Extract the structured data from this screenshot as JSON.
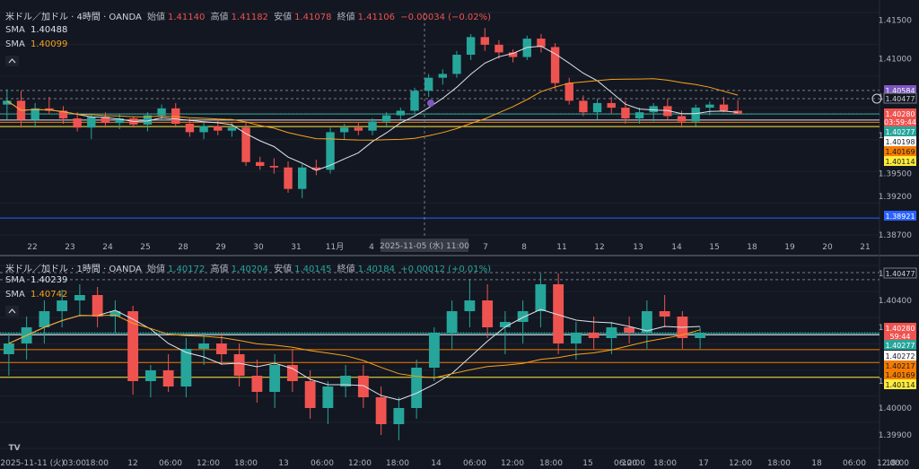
{
  "colors": {
    "bg": "#131722",
    "up": "#26a69a",
    "down": "#ef5350",
    "sma_fast": "#e0e3eb",
    "sma_slow": "#f7a21b",
    "grid": "#1e222d",
    "text": "#b2b5be"
  },
  "top": {
    "title": "米ドル／加ドル · 4時間 · OANDA",
    "ohlc": {
      "open_label": "始値",
      "open": "1.41140",
      "high_label": "高値",
      "high": "1.41182",
      "low_label": "安値",
      "low": "1.41078",
      "close_label": "終値",
      "close": "1.41106",
      "change": "−0.00034 (−0.02%)"
    },
    "sma1": {
      "label": "SMA",
      "value": "1.40488"
    },
    "sma2": {
      "label": "SMA",
      "value": "1.40099"
    },
    "price_ticks": [
      "1.41500",
      "1.41000",
      "1.40500",
      "1.40000",
      "1.39500",
      "1.39200",
      "1.38700"
    ],
    "tags": [
      {
        "text": "1.40584",
        "bg": "#7e57c2",
        "fg": "#ffffff"
      },
      {
        "text": "1.40477",
        "bg": "#131722",
        "fg": "#d1d4dc"
      },
      {
        "text": "1.40280",
        "bg": "#ef5350",
        "fg": "#ffffff"
      },
      {
        "text": "03:59:44",
        "bg": "#ef5350",
        "fg": "#ffffff"
      },
      {
        "text": "1.40277",
        "bg": "#26a69a",
        "fg": "#ffffff"
      },
      {
        "text": "1.40198",
        "bg": "#ffffff",
        "fg": "#131722"
      },
      {
        "text": "1.40169",
        "bg": "#f57c00",
        "fg": "#131722"
      },
      {
        "text": "1.40114",
        "bg": "#ffeb3b",
        "fg": "#131722"
      },
      {
        "text": "1.38921",
        "bg": "#2962ff",
        "fg": "#ffffff"
      }
    ],
    "time_ticks": [
      "22",
      "23",
      "24",
      "25",
      "28",
      "29",
      "30",
      "31",
      "11月",
      "4",
      "5",
      "6",
      "7",
      "8",
      "11",
      "12",
      "13",
      "14",
      "15",
      "18",
      "19",
      "20",
      "21"
    ],
    "crosshair_label": "2025-11-05 (水)  11:00"
  },
  "bottom": {
    "title": "米ドル／加ドル · 1時間 · OANDA",
    "ohlc": {
      "open_label": "始値",
      "open": "1.40172",
      "high_label": "高値",
      "high": "1.40204",
      "low_label": "安値",
      "low": "1.40145",
      "close_label": "終値",
      "close": "1.40184",
      "change": "+0.00012 (+0.01%)"
    },
    "sma1": {
      "label": "SMA",
      "value": "1.40239"
    },
    "sma2": {
      "label": "SMA",
      "value": "1.40742"
    },
    "price_ticks": [
      "1.40500",
      "1.40400",
      "1.40300",
      "1.40100",
      "1.40000",
      "1.39900"
    ],
    "tags": [
      {
        "text": "1.40477",
        "bg": "#131722",
        "fg": "#d1d4dc"
      },
      {
        "text": "1.40280",
        "bg": "#ef5350",
        "fg": "#ffffff"
      },
      {
        "text": "59:44",
        "bg": "#ef5350",
        "fg": "#ffffff"
      },
      {
        "text": "1.40277",
        "bg": "#26a69a",
        "fg": "#ffffff"
      },
      {
        "text": "1.40272",
        "bg": "#ffffff",
        "fg": "#131722"
      },
      {
        "text": "1.40217",
        "bg": "#f57c00",
        "fg": "#131722"
      },
      {
        "text": "1.40169",
        "bg": "#f57c00",
        "fg": "#131722"
      },
      {
        "text": "1.40114",
        "bg": "#ffeb3b",
        "fg": "#131722"
      }
    ],
    "time_ticks": [
      "2025-11-11 (火)",
      "03:00",
      "18:00",
      "12",
      "06:00",
      "12:00",
      "18:00",
      "13",
      "06:00",
      "12:00",
      "18:00",
      "14",
      "06:00",
      "12:00",
      "18:00",
      "15",
      "06:00",
      "12:00",
      "18:00",
      "17",
      "12:00",
      "18:00",
      "18",
      "06:00",
      "12:00",
      "18:00"
    ],
    "logo": "TV"
  },
  "chart_data": [
    {
      "type": "candlestick",
      "title": "米ドル／加ドル · 4時間 · OANDA",
      "ylim": [
        1.387,
        1.416
      ],
      "x_ticks": [
        "22",
        "23",
        "24",
        "25",
        "28",
        "29",
        "30",
        "31",
        "11月",
        "4",
        "5",
        "6",
        "7",
        "8",
        "11",
        "12",
        "13",
        "14",
        "15",
        "18",
        "19",
        "20",
        "21"
      ],
      "ohlc": [
        [
          1.404,
          1.406,
          1.402,
          1.4045
        ],
        [
          1.4045,
          1.4058,
          1.401,
          1.402
        ],
        [
          1.402,
          1.4042,
          1.401,
          1.4035
        ],
        [
          1.4035,
          1.405,
          1.4028,
          1.4032
        ],
        [
          1.4032,
          1.4038,
          1.4015,
          1.4022
        ],
        [
          1.4022,
          1.403,
          1.4005,
          1.401
        ],
        [
          1.401,
          1.4028,
          1.3995,
          1.4024
        ],
        [
          1.4024,
          1.403,
          1.401,
          1.4016
        ],
        [
          1.4016,
          1.4028,
          1.4008,
          1.4022
        ],
        [
          1.4022,
          1.4025,
          1.401,
          1.4014
        ],
        [
          1.4014,
          1.403,
          1.4005,
          1.4026
        ],
        [
          1.4026,
          1.404,
          1.402,
          1.4035
        ],
        [
          1.4035,
          1.4042,
          1.401,
          1.4015
        ],
        [
          1.4015,
          1.4022,
          1.3998,
          1.4004
        ],
        [
          1.4004,
          1.4018,
          1.3995,
          1.4012
        ],
        [
          1.4012,
          1.402,
          1.4,
          1.4006
        ],
        [
          1.4006,
          1.4016,
          1.3998,
          1.401
        ],
        [
          1.401,
          1.4018,
          1.396,
          1.3965
        ],
        [
          1.3965,
          1.3972,
          1.3955,
          1.396
        ],
        [
          1.396,
          1.397,
          1.395,
          1.3958
        ],
        [
          1.3958,
          1.3966,
          1.3925,
          1.393
        ],
        [
          1.393,
          1.3962,
          1.3918,
          1.3958
        ],
        [
          1.3958,
          1.3968,
          1.3948,
          1.3955
        ],
        [
          1.3955,
          1.401,
          1.395,
          1.4004
        ],
        [
          1.4004,
          1.4015,
          1.3995,
          1.401
        ],
        [
          1.401,
          1.4016,
          1.4,
          1.4006
        ],
        [
          1.4006,
          1.4022,
          1.4,
          1.4018
        ],
        [
          1.4018,
          1.403,
          1.401,
          1.4026
        ],
        [
          1.4026,
          1.4036,
          1.402,
          1.4032
        ],
        [
          1.4032,
          1.4062,
          1.4028,
          1.4058
        ],
        [
          1.4058,
          1.408,
          1.405,
          1.4075
        ],
        [
          1.4075,
          1.4086,
          1.4066,
          1.408
        ],
        [
          1.408,
          1.411,
          1.4075,
          1.4105
        ],
        [
          1.4105,
          1.4132,
          1.4098,
          1.4128
        ],
        [
          1.4128,
          1.414,
          1.411,
          1.4118
        ],
        [
          1.4118,
          1.4124,
          1.41,
          1.4108
        ],
        [
          1.4108,
          1.4112,
          1.4095,
          1.4102
        ],
        [
          1.4102,
          1.413,
          1.4098,
          1.4126
        ],
        [
          1.4126,
          1.4132,
          1.4108,
          1.4115
        ],
        [
          1.4115,
          1.412,
          1.406,
          1.4068
        ],
        [
          1.4068,
          1.4075,
          1.404,
          1.4045
        ],
        [
          1.4045,
          1.4052,
          1.4025,
          1.403
        ],
        [
          1.403,
          1.4048,
          1.402,
          1.4042
        ],
        [
          1.4042,
          1.405,
          1.4028,
          1.4036
        ],
        [
          1.4036,
          1.4045,
          1.4015,
          1.4022
        ],
        [
          1.4022,
          1.4036,
          1.4015,
          1.403
        ],
        [
          1.403,
          1.4042,
          1.4018,
          1.4038
        ],
        [
          1.4038,
          1.4048,
          1.402,
          1.4025
        ],
        [
          1.4025,
          1.4032,
          1.401,
          1.4018
        ],
        [
          1.4018,
          1.404,
          1.4012,
          1.4036
        ],
        [
          1.4036,
          1.4044,
          1.4026,
          1.404
        ],
        [
          1.404,
          1.405,
          1.403,
          1.4032
        ],
        [
          1.4032,
          1.4046,
          1.4028,
          1.4028
        ]
      ],
      "sma_fast_label": "SMA",
      "sma_fast_last": 1.40488,
      "sma_slow_label": "SMA",
      "sma_slow_last": 1.40099,
      "hlines": [
        1.40584,
        1.40477,
        1.4028,
        1.40277,
        1.40198,
        1.40169,
        1.40114,
        1.38921
      ]
    },
    {
      "type": "candlestick",
      "title": "米ドル／加ドル · 1時間 · OANDA",
      "ylim": [
        1.3985,
        1.4053
      ],
      "ohlc": [
        [
          1.402,
          1.4028,
          1.4012,
          1.4024
        ],
        [
          1.4024,
          1.4034,
          1.4018,
          1.403
        ],
        [
          1.403,
          1.404,
          1.4024,
          1.4036
        ],
        [
          1.4036,
          1.4044,
          1.403,
          1.404
        ],
        [
          1.404,
          1.4046,
          1.4034,
          1.4042
        ],
        [
          1.4042,
          1.4045,
          1.403,
          1.4034
        ],
        [
          1.4034,
          1.404,
          1.4028,
          1.4036
        ],
        [
          1.4036,
          1.4038,
          1.4005,
          1.401
        ],
        [
          1.401,
          1.4016,
          1.4004,
          1.4014
        ],
        [
          1.4014,
          1.402,
          1.4006,
          1.4008
        ],
        [
          1.4008,
          1.4026,
          1.4004,
          1.4022
        ],
        [
          1.4022,
          1.4028,
          1.4016,
          1.4024
        ],
        [
          1.4024,
          1.4028,
          1.4016,
          1.402
        ],
        [
          1.402,
          1.4024,
          1.4008,
          1.4012
        ],
        [
          1.4012,
          1.4018,
          1.4002,
          1.4006
        ],
        [
          1.4006,
          1.402,
          1.4,
          1.4016
        ],
        [
          1.4016,
          1.4022,
          1.4006,
          1.401
        ],
        [
          1.401,
          1.4014,
          1.3996,
          1.4
        ],
        [
          1.4,
          1.401,
          1.3994,
          1.4008
        ],
        [
          1.4008,
          1.4016,
          1.4004,
          1.4012
        ],
        [
          1.4012,
          1.4016,
          1.4,
          1.4004
        ],
        [
          1.4004,
          1.4008,
          1.399,
          1.3994
        ],
        [
          1.3994,
          1.4004,
          1.3988,
          1.4
        ],
        [
          1.4,
          1.4018,
          1.3996,
          1.4015
        ],
        [
          1.4015,
          1.403,
          1.401,
          1.4028
        ],
        [
          1.4028,
          1.404,
          1.4022,
          1.4036
        ],
        [
          1.4036,
          1.4048,
          1.403,
          1.404
        ],
        [
          1.404,
          1.4046,
          1.4026,
          1.403
        ],
        [
          1.403,
          1.4036,
          1.402,
          1.4032
        ],
        [
          1.4032,
          1.404,
          1.4024,
          1.4036
        ],
        [
          1.4036,
          1.405,
          1.403,
          1.4046
        ],
        [
          1.4046,
          1.405,
          1.402,
          1.4024
        ],
        [
          1.4024,
          1.4032,
          1.4018,
          1.4028
        ],
        [
          1.4028,
          1.4034,
          1.4022,
          1.4026
        ],
        [
          1.4026,
          1.4032,
          1.402,
          1.403
        ],
        [
          1.403,
          1.4034,
          1.4024,
          1.4028
        ],
        [
          1.4028,
          1.404,
          1.4022,
          1.4036
        ],
        [
          1.4036,
          1.4042,
          1.403,
          1.4034
        ],
        [
          1.4034,
          1.4036,
          1.4022,
          1.4026
        ],
        [
          1.4026,
          1.403,
          1.4022,
          1.4028
        ]
      ],
      "sma_fast_label": "SMA",
      "sma_fast_last": 1.40239,
      "sma_slow_label": "SMA",
      "sma_slow_last": 1.40742,
      "hlines": [
        1.40477,
        1.4028,
        1.40277,
        1.40272,
        1.40217,
        1.40169,
        1.40114
      ]
    }
  ]
}
